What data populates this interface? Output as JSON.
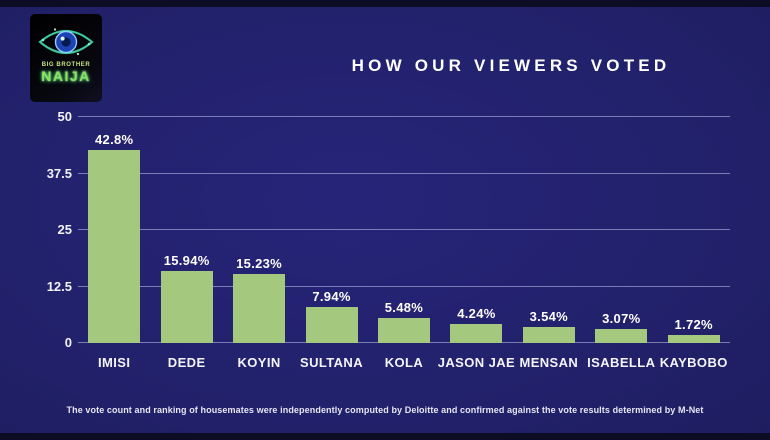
{
  "logo": {
    "line1": "BIG BROTHER",
    "line2": "NAIJA"
  },
  "header": {
    "title": "HOW OUR VIEWERS VOTED"
  },
  "chart_data": {
    "type": "bar",
    "title": "HOW OUR VIEWERS VOTED",
    "categories": [
      "IMISI",
      "DEDE",
      "KOYIN",
      "SULTANA",
      "KOLA",
      "JASON JAE",
      "MENSAN",
      "ISABELLA",
      "KAYBOBO"
    ],
    "values": [
      42.8,
      15.94,
      15.23,
      7.94,
      5.48,
      4.24,
      3.54,
      3.07,
      1.72
    ],
    "value_labels": [
      "42.8%",
      "15.94%",
      "15.23%",
      "7.94%",
      "5.48%",
      "4.24%",
      "3.54%",
      "3.07%",
      "1.72%"
    ],
    "xlabel": "",
    "ylabel": "",
    "ylim": [
      0,
      50
    ],
    "yticks": [
      0,
      12.5,
      25,
      37.5,
      50
    ],
    "grid": true,
    "legend": false,
    "bar_color": "#a3c87e",
    "background_color": "#22216b",
    "gridline_color": "rgba(195,200,240,0.55)",
    "text_color": "#ffffff"
  },
  "footer": {
    "note": "The vote count and ranking of housemates were independently computed by Deloitte and confirmed against the vote results determined by M-Net"
  }
}
